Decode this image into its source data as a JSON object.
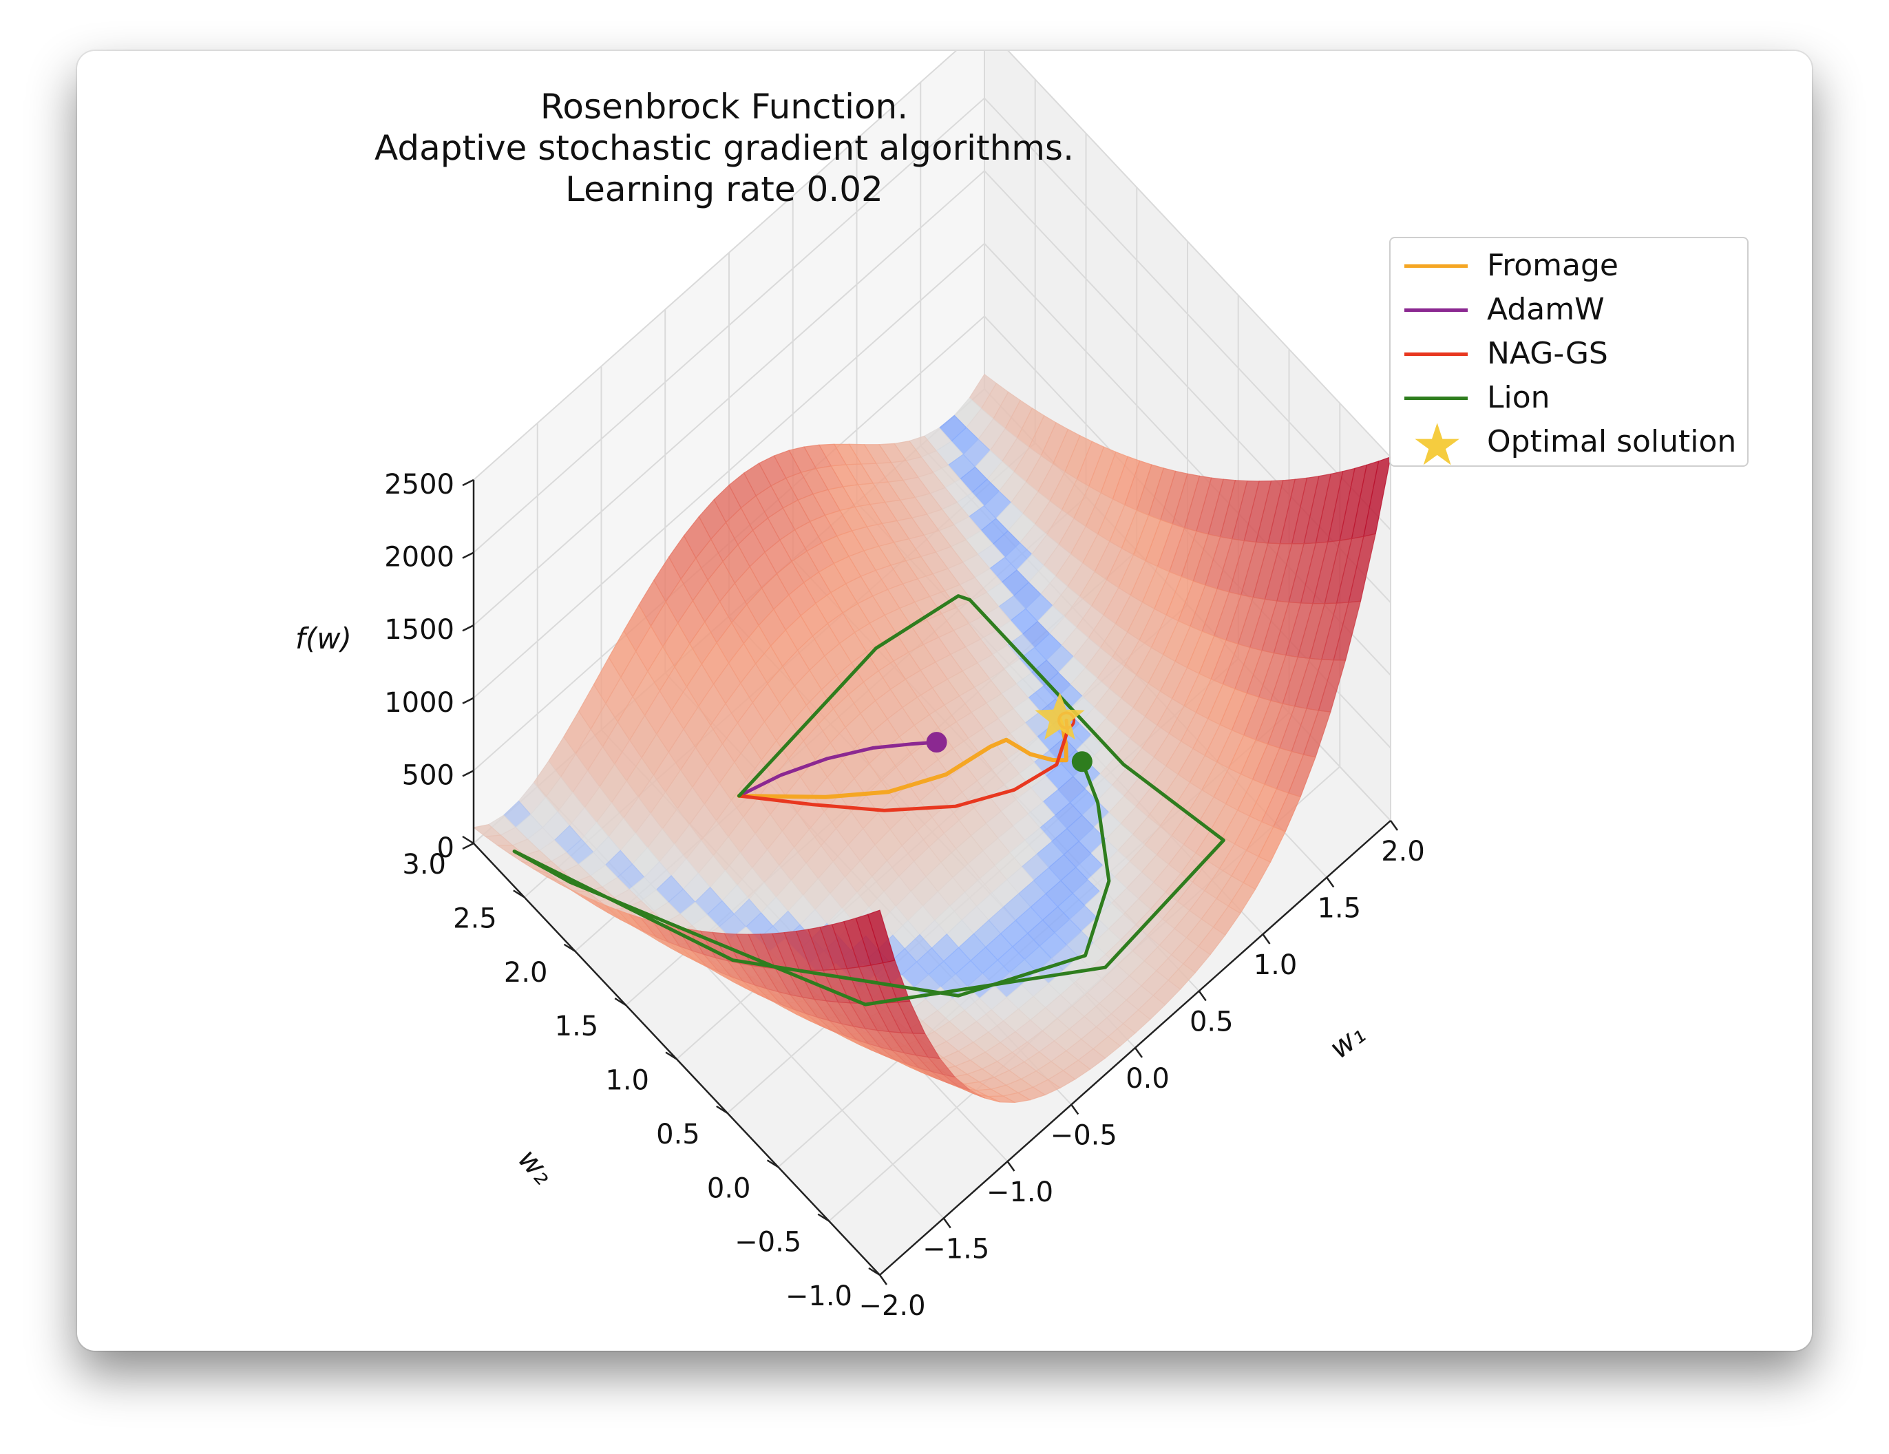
{
  "chart_data": {
    "type": "surface3d",
    "title_lines": [
      "Rosenbrock Function.",
      "Adaptive stochastic gradient algorithms.",
      "Learning rate 0.02"
    ],
    "xlabel": "w₁",
    "ylabel": "w₂",
    "zlabel": "f(w)",
    "x_ticks": [
      "−2.0",
      "−1.5",
      "−1.0",
      "−0.5",
      "0.0",
      "0.5",
      "1.0",
      "1.5",
      "2.0"
    ],
    "y_ticks": [
      "−1.0",
      "−0.5",
      "0.0",
      "0.5",
      "1.0",
      "1.5",
      "2.0",
      "2.5",
      "3.0"
    ],
    "z_ticks": [
      "0",
      "500",
      "1000",
      "1500",
      "2000",
      "2500"
    ],
    "xlim": [
      -2,
      2
    ],
    "ylim": [
      -1,
      3
    ],
    "zlim": [
      0,
      2500
    ],
    "function": "rosenbrock",
    "colormap": "coolwarm",
    "legend_position": "top-right",
    "series": [
      {
        "name": "Fromage",
        "color": "#f5a623",
        "points": [
          [
            -0.78,
            1.92
          ],
          [
            -0.42,
            1.52
          ],
          [
            -0.12,
            1.28
          ],
          [
            0.22,
            1.14
          ],
          [
            0.55,
            1.12
          ],
          [
            0.66,
            1.1
          ],
          [
            0.72,
            0.94
          ],
          [
            0.8,
            0.82
          ],
          [
            0.86,
            0.76
          ],
          [
            0.92,
            0.84
          ],
          [
            0.97,
            0.93
          ],
          [
            1.0,
            1.0
          ]
        ]
      },
      {
        "name": "AdamW",
        "color": "#8b2891",
        "points": [
          [
            -0.78,
            1.92
          ],
          [
            -0.55,
            1.8
          ],
          [
            -0.3,
            1.66
          ],
          [
            -0.05,
            1.52
          ],
          [
            0.15,
            1.4
          ],
          [
            0.29,
            1.32
          ]
        ]
      },
      {
        "name": "NAG-GS",
        "color": "#e8371f",
        "points": [
          [
            -0.78,
            1.92
          ],
          [
            -0.5,
            1.55
          ],
          [
            -0.2,
            1.22
          ],
          [
            0.15,
            0.96
          ],
          [
            0.5,
            0.82
          ],
          [
            0.8,
            0.78
          ],
          [
            0.98,
            0.9
          ],
          [
            1.02,
            0.96
          ]
        ]
      },
      {
        "name": "Lion",
        "color": "#2e7d1e",
        "points": [
          [
            -0.78,
            1.92
          ],
          [
            0.3,
            1.93
          ],
          [
            1.0,
            2.0
          ],
          [
            1.05,
            1.95
          ],
          [
            1.06,
            0.45
          ],
          [
            1.05,
            -0.55
          ],
          [
            0.18,
            -0.48
          ],
          [
            -1.0,
            0.4
          ],
          [
            -1.8,
            2.3
          ],
          [
            -1.92,
            2.7
          ],
          [
            -1.4,
            1.2
          ],
          [
            -0.55,
            0.05
          ],
          [
            0.15,
            -0.32
          ],
          [
            0.55,
            -0.05
          ],
          [
            0.82,
            0.4
          ],
          [
            0.92,
            0.68
          ]
        ]
      }
    ],
    "optimal_solution": {
      "name": "Optimal solution",
      "w1": 1.0,
      "w2": 1.0,
      "color": "#f5cc3f"
    }
  }
}
